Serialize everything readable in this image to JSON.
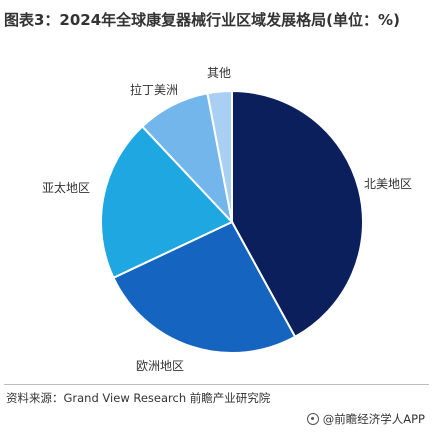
{
  "chart_data": {
    "type": "pie",
    "title": "图表3：2024年全球康复器械行业区域发展格局(单位：%)",
    "categories": [
      "北美地区",
      "欧洲地区",
      "亚太地区",
      "拉丁美洲",
      "其他"
    ],
    "values": [
      42,
      26,
      20,
      9,
      3
    ],
    "colors": [
      "#0a1f5c",
      "#1565c0",
      "#1ea7e1",
      "#73b6ec",
      "#a9cff3"
    ],
    "start_angle_deg": 0,
    "direction": "clockwise"
  },
  "footer": {
    "source": "资料来源：Grand View Research 前瞻产业研究院",
    "brand": "@前瞻经济学人APP"
  }
}
